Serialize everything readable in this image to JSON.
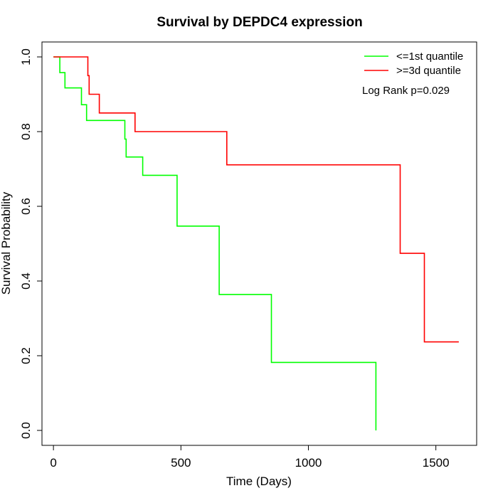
{
  "chart_data": {
    "type": "line",
    "title": "Survival by DEPDC4 expression",
    "xlabel": "Time (Days)",
    "ylabel": "Survival Probability",
    "xlim": [
      -45,
      1660
    ],
    "ylim": [
      -0.04,
      1.04
    ],
    "x_ticks": [
      0,
      500,
      1000,
      1500
    ],
    "x_tick_labels": [
      "0",
      "500",
      "1000",
      "1500"
    ],
    "y_ticks": [
      0.0,
      0.2,
      0.4,
      0.6,
      0.8,
      1.0
    ],
    "y_tick_labels": [
      "0.0",
      "0.2",
      "0.4",
      "0.6",
      "0.8",
      "1.0"
    ],
    "grid": false,
    "legend_position": "top-right",
    "annotation": "Log Rank p=0.029",
    "series": [
      {
        "name": "<=1st quantile",
        "color": "#00ff00",
        "step": true,
        "x": [
          0,
          25,
          25,
          45,
          45,
          110,
          110,
          130,
          130,
          280,
          280,
          285,
          285,
          350,
          350,
          485,
          485,
          650,
          650,
          855,
          855,
          1265,
          1265
        ],
        "y": [
          1.0,
          1.0,
          0.958,
          0.958,
          0.917,
          0.917,
          0.872,
          0.872,
          0.83,
          0.83,
          0.78,
          0.78,
          0.732,
          0.732,
          0.683,
          0.683,
          0.547,
          0.547,
          0.364,
          0.364,
          0.182,
          0.182,
          0.0
        ]
      },
      {
        "name": ">=3d quantile",
        "color": "#ff0000",
        "step": true,
        "x": [
          0,
          135,
          135,
          140,
          140,
          180,
          180,
          320,
          320,
          680,
          680,
          1360,
          1360,
          1455,
          1455,
          1590
        ],
        "y": [
          1.0,
          1.0,
          0.95,
          0.95,
          0.9,
          0.9,
          0.85,
          0.85,
          0.8,
          0.8,
          0.711,
          0.711,
          0.474,
          0.474,
          0.237,
          0.237
        ]
      }
    ]
  }
}
